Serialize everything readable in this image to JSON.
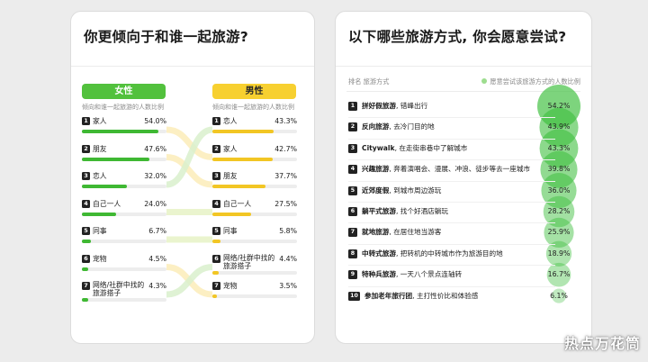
{
  "colors": {
    "female": "#3fb833",
    "male": "#f2c624",
    "bubble": "#3fbf3f"
  },
  "chart_data": [
    {
      "type": "table",
      "title": "你更倾向于和谁一起旅游?",
      "female": {
        "header": "女性",
        "subheader": "倾向和谁一起旅游的人数比例",
        "items": [
          {
            "rank": "1",
            "label": "家人",
            "value": 54.0,
            "display": "54.0%"
          },
          {
            "rank": "2",
            "label": "朋友",
            "value": 47.6,
            "display": "47.6%"
          },
          {
            "rank": "3",
            "label": "恋人",
            "value": 32.0,
            "display": "32.0%"
          },
          {
            "rank": "4",
            "label": "自己一人",
            "value": 24.0,
            "display": "24.0%"
          },
          {
            "rank": "5",
            "label": "同事",
            "value": 6.7,
            "display": "6.7%"
          },
          {
            "rank": "6",
            "label": "宠物",
            "value": 4.5,
            "display": "4.5%"
          },
          {
            "rank": "7",
            "label": "网络/社群中找的旅游搭子",
            "value": 4.3,
            "display": "4.3%"
          }
        ]
      },
      "male": {
        "header": "男性",
        "subheader": "倾向和谁一起旅游的人数比例",
        "items": [
          {
            "rank": "1",
            "label": "恋人",
            "value": 43.3,
            "display": "43.3%"
          },
          {
            "rank": "2",
            "label": "家人",
            "value": 42.7,
            "display": "42.7%"
          },
          {
            "rank": "3",
            "label": "朋友",
            "value": 37.7,
            "display": "37.7%"
          },
          {
            "rank": "4",
            "label": "自己一人",
            "value": 27.5,
            "display": "27.5%"
          },
          {
            "rank": "5",
            "label": "同事",
            "value": 5.8,
            "display": "5.8%"
          },
          {
            "rank": "6",
            "label": "网络/社群中找的旅游搭子",
            "value": 4.4,
            "display": "4.4%"
          },
          {
            "rank": "7",
            "label": "宠物",
            "value": 3.5,
            "display": "3.5%"
          }
        ]
      }
    },
    {
      "type": "scatter",
      "title": "以下哪些旅游方式, 你会愿意尝试?",
      "column_header": "排名 旅游方式",
      "legend": "愿意尝试该旅游方式的人数比例",
      "items": [
        {
          "rank": "1",
          "name": "拼好假旅游",
          "desc": ", 错峰出行",
          "value": 54.2,
          "display": "54.2%"
        },
        {
          "rank": "2",
          "name": "反向旅游",
          "desc": ", 去冷门目的地",
          "value": 43.9,
          "display": "43.9%"
        },
        {
          "rank": "3",
          "name": "Citywalk",
          "desc": ", 在走街串巷中了解城市",
          "value": 43.3,
          "display": "43.3%"
        },
        {
          "rank": "4",
          "name": "兴趣旅游",
          "desc": ", 奔着演唱会、漫展、冲浪、徒步等去一座城市",
          "value": 39.8,
          "display": "39.8%"
        },
        {
          "rank": "5",
          "name": "近郊度假",
          "desc": ", 到城市周边游玩",
          "value": 36.0,
          "display": "36.0%"
        },
        {
          "rank": "6",
          "name": "躺平式旅游",
          "desc": ", 找个好酒店躺玩",
          "value": 28.2,
          "display": "28.2%"
        },
        {
          "rank": "7",
          "name": "就地旅游",
          "desc": ", 在居住地当游客",
          "value": 25.9,
          "display": "25.9%"
        },
        {
          "rank": "8",
          "name": "中转式旅游",
          "desc": ", 把转机的中转城市作为旅游目的地",
          "value": 18.9,
          "display": "18.9%"
        },
        {
          "rank": "9",
          "name": "特种兵旅游",
          "desc": ", 一天八个景点连轴转",
          "value": 16.7,
          "display": "16.7%"
        },
        {
          "rank": "10",
          "name": "参加老年旅行团",
          "desc": ", 主打性价比和体验感",
          "value": 6.1,
          "display": "6.1%"
        }
      ]
    }
  ],
  "watermark": "热点万花筒"
}
